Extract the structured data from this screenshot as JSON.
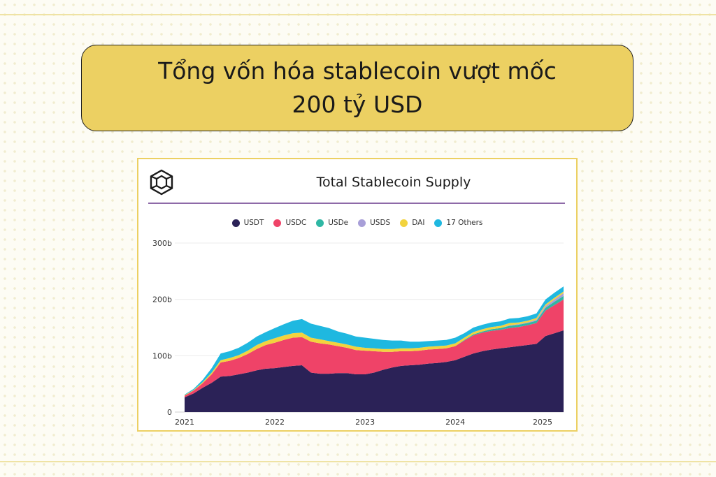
{
  "headline": {
    "line1": "Tổng vốn hóa stablecoin vượt mốc",
    "line2": "200 tỷ USD"
  },
  "chart_data": {
    "type": "area",
    "title": "Total Stablecoin Supply",
    "stacked": true,
    "legend_position": "top-center",
    "grid": true,
    "y_unit_suffix": "b",
    "ylim": [
      0,
      300
    ],
    "y_ticks": [
      "0",
      "100b",
      "200b",
      "300b"
    ],
    "x_ticks": [
      "2021",
      "2022",
      "2023",
      "2024",
      "2025"
    ],
    "x": [
      2021.0,
      2021.1,
      2021.2,
      2021.3,
      2021.4,
      2021.5,
      2021.6,
      2021.7,
      2021.8,
      2021.9,
      2022.0,
      2022.1,
      2022.2,
      2022.3,
      2022.4,
      2022.5,
      2022.6,
      2022.7,
      2022.8,
      2022.9,
      2023.0,
      2023.1,
      2023.2,
      2023.3,
      2023.4,
      2023.5,
      2023.6,
      2023.7,
      2023.8,
      2023.9,
      2024.0,
      2024.1,
      2024.2,
      2024.3,
      2024.4,
      2024.5,
      2024.6,
      2024.7,
      2024.8,
      2024.9,
      2025.0,
      2025.1,
      2025.2
    ],
    "series": [
      {
        "name": "USDT",
        "color": "#2b2257",
        "values": [
          26,
          33,
          43,
          52,
          63,
          64,
          67,
          70,
          74,
          77,
          78,
          80,
          82,
          83,
          70,
          68,
          68,
          69,
          69,
          67,
          67,
          70,
          75,
          79,
          82,
          83,
          84,
          86,
          87,
          89,
          92,
          98,
          104,
          108,
          111,
          113,
          115,
          117,
          119,
          121,
          135,
          140,
          145
        ]
      },
      {
        "name": "USDC",
        "color": "#ef4368",
        "values": [
          3,
          5,
          8,
          15,
          25,
          27,
          29,
          33,
          38,
          42,
          45,
          48,
          50,
          50,
          55,
          54,
          52,
          48,
          45,
          43,
          42,
          38,
          32,
          28,
          26,
          25,
          25,
          25,
          25,
          24,
          25,
          29,
          32,
          33,
          33,
          33,
          34,
          34,
          35,
          37,
          45,
          50,
          55
        ]
      },
      {
        "name": "USDe",
        "color": "#2fb7a4",
        "values": [
          0,
          0,
          0,
          0,
          0,
          0,
          0,
          0,
          0,
          0,
          0,
          0,
          0,
          0,
          0,
          0,
          0,
          0,
          0,
          0,
          0,
          0,
          0,
          0,
          0,
          0,
          0,
          0,
          0,
          0,
          0,
          1,
          2,
          2,
          3,
          3,
          4,
          4,
          4,
          4,
          5,
          6,
          6
        ]
      },
      {
        "name": "USDS",
        "color": "#a89fd8",
        "values": [
          0,
          0,
          0,
          0,
          0,
          0,
          0,
          0,
          0,
          0,
          0,
          0,
          0,
          0,
          0,
          0,
          0,
          0,
          0,
          0,
          0,
          0,
          0,
          0,
          0,
          0,
          0,
          0,
          0,
          0,
          0,
          0,
          0,
          0,
          0,
          0,
          1,
          1,
          1,
          2,
          3,
          4,
          5
        ]
      },
      {
        "name": "DAI",
        "color": "#f2d33e",
        "values": [
          1,
          1,
          2,
          3,
          4,
          5,
          5,
          6,
          7,
          7,
          8,
          8,
          8,
          8,
          7,
          7,
          6,
          6,
          6,
          6,
          5,
          5,
          5,
          5,
          5,
          5,
          5,
          5,
          5,
          5,
          5,
          4,
          4,
          4,
          4,
          4,
          4,
          3,
          3,
          3,
          3,
          3,
          3
        ]
      },
      {
        "name": "17 Others",
        "color": "#1fb8e0",
        "values": [
          1,
          2,
          4,
          8,
          12,
          12,
          13,
          14,
          15,
          16,
          18,
          20,
          22,
          24,
          25,
          24,
          23,
          20,
          19,
          18,
          18,
          17,
          16,
          15,
          14,
          12,
          11,
          10,
          10,
          10,
          10,
          8,
          8,
          8,
          8,
          8,
          8,
          8,
          8,
          8,
          9,
          9,
          9
        ]
      }
    ]
  }
}
